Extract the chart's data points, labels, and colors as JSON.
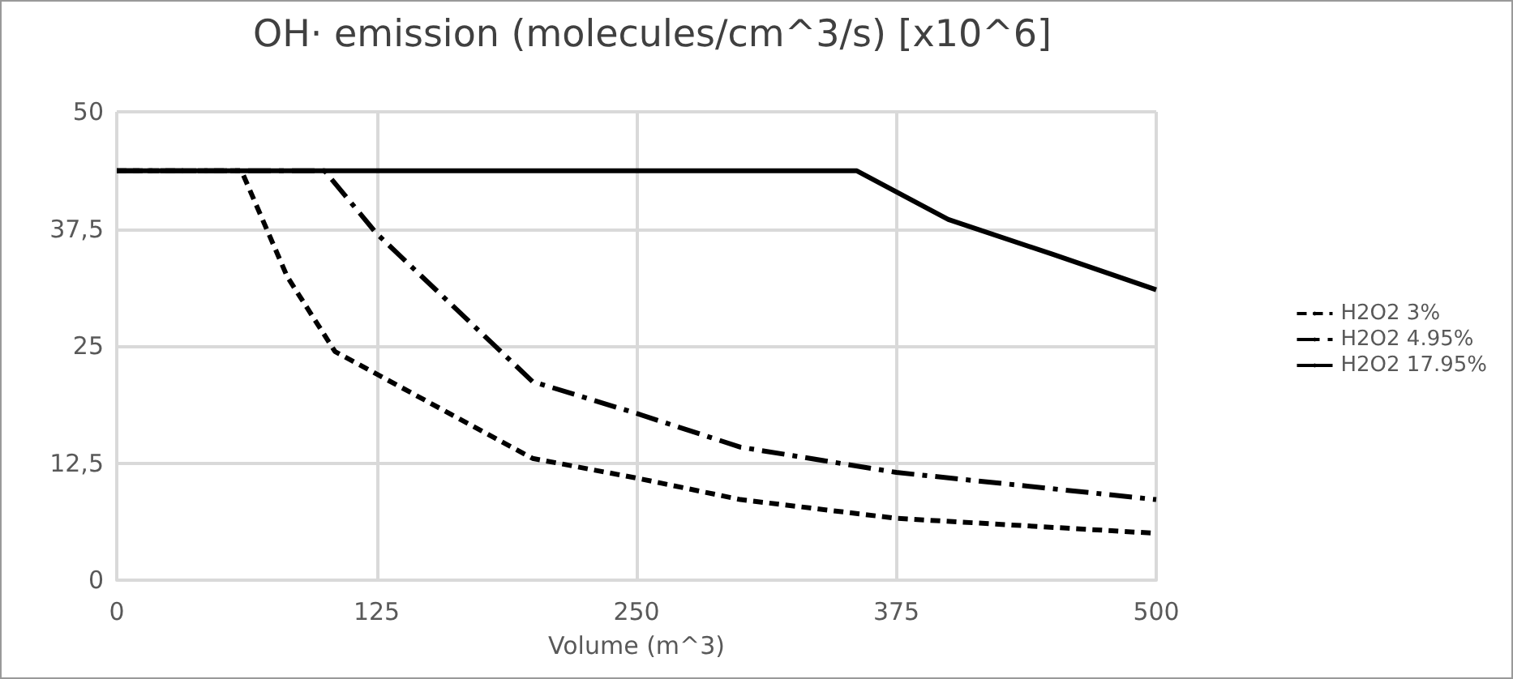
{
  "chart_data": {
    "type": "line",
    "title": "OH· emission (molecules/cm^3/s) [x10^6]",
    "xlabel": "Volume (m^3)",
    "xlim": [
      0,
      500
    ],
    "xticks": [
      0,
      125,
      250,
      375,
      500
    ],
    "ylim": [
      0,
      50
    ],
    "yticks": [
      0,
      {
        "value": 12.5,
        "label": "12,5"
      },
      25,
      {
        "value": 37.5,
        "label": "37,5"
      },
      50
    ],
    "grid": true,
    "legend": "right",
    "marker": "none",
    "series": [
      {
        "name": "H2O2 3%",
        "color": "#000000",
        "line_style": "dashed",
        "x": [
          0,
          60,
          82,
          105,
          200,
          250,
          300,
          375,
          500
        ],
        "values": [
          43.7,
          43.7,
          32.4,
          24.4,
          13,
          10.9,
          8.6,
          6.6,
          5.0
        ]
      },
      {
        "name": "H2O2 4.95%",
        "color": "#000000",
        "line_style": "dashdot",
        "x": [
          0,
          100,
          125,
          200,
          250,
          300,
          375,
          500
        ],
        "values": [
          43.7,
          43.7,
          37.0,
          21.2,
          17.8,
          14.2,
          11.5,
          8.6
        ]
      },
      {
        "name": "H2O2 17.95%",
        "color": "#000000",
        "line_style": "solid",
        "x": [
          0,
          356,
          400,
          450,
          500
        ],
        "values": [
          43.7,
          43.7,
          38.5,
          34.8,
          31.0
        ]
      }
    ]
  }
}
